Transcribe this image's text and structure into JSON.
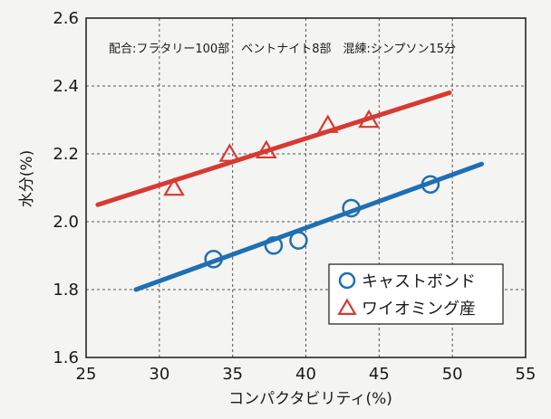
{
  "chart_data": {
    "type": "scatter",
    "title": "",
    "annotation": "配合:フラタリー100部　ベントナイト8部　混練:シンプソン15分",
    "xlabel": "コンパクタビリティ(%)",
    "ylabel": "水分(%)",
    "xlim": [
      25,
      55
    ],
    "ylim": [
      1.6,
      2.6
    ],
    "x_ticks": [
      "25",
      "30",
      "35",
      "40",
      "45",
      "50",
      "55"
    ],
    "y_ticks": [
      "1.6",
      "1.8",
      "2.0",
      "2.2",
      "2.4",
      "2.6"
    ],
    "grid": true,
    "legend_position": "bottom-right",
    "series": [
      {
        "name": "キャストボンド",
        "marker": "circle",
        "color": "#1f6fb2",
        "points": [
          {
            "x": 33.7,
            "y": 1.89
          },
          {
            "x": 37.8,
            "y": 1.93
          },
          {
            "x": 39.5,
            "y": 1.945
          },
          {
            "x": 43.1,
            "y": 2.04
          },
          {
            "x": 48.5,
            "y": 2.11
          }
        ],
        "fit_line": [
          {
            "x": 28.4,
            "y": 1.8
          },
          {
            "x": 52.0,
            "y": 2.17
          }
        ]
      },
      {
        "name": "ワイオミング産",
        "marker": "triangle",
        "color": "#d63a32",
        "points": [
          {
            "x": 31.0,
            "y": 2.1
          },
          {
            "x": 34.8,
            "y": 2.2
          },
          {
            "x": 37.3,
            "y": 2.21
          },
          {
            "x": 41.5,
            "y": 2.285
          },
          {
            "x": 44.3,
            "y": 2.3
          }
        ],
        "fit_line": [
          {
            "x": 25.8,
            "y": 2.05
          },
          {
            "x": 49.8,
            "y": 2.38
          }
        ]
      }
    ]
  }
}
